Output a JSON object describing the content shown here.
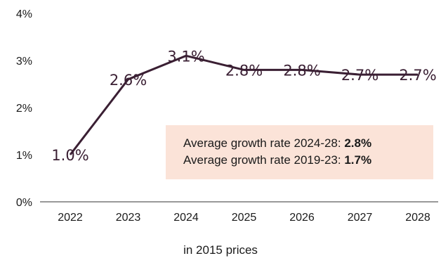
{
  "chart_data": {
    "type": "line",
    "categories": [
      "2022",
      "2023",
      "2024",
      "2025",
      "2026",
      "2027",
      "2028"
    ],
    "values": [
      1.0,
      2.6,
      3.1,
      2.8,
      2.8,
      2.7,
      2.7
    ],
    "data_labels": [
      "1.0%",
      "2.6%",
      "3.1%",
      "2.8%",
      "2.8%",
      "2.7%",
      "2.7%"
    ],
    "y_ticks": [
      "0%",
      "1%",
      "2%",
      "3%",
      "4%"
    ],
    "ylim": [
      0,
      4
    ],
    "grid": false,
    "title": "",
    "xlabel": "in 2015 prices",
    "ylabel": "",
    "line_color": "#3a1f33",
    "annotation": {
      "line1_label": "Average growth rate 2024-28: ",
      "line1_value": "2.8%",
      "line2_label": "Average growth rate 2019-23: ",
      "line2_value": "1.7%",
      "background": "#fbe3d8"
    }
  }
}
